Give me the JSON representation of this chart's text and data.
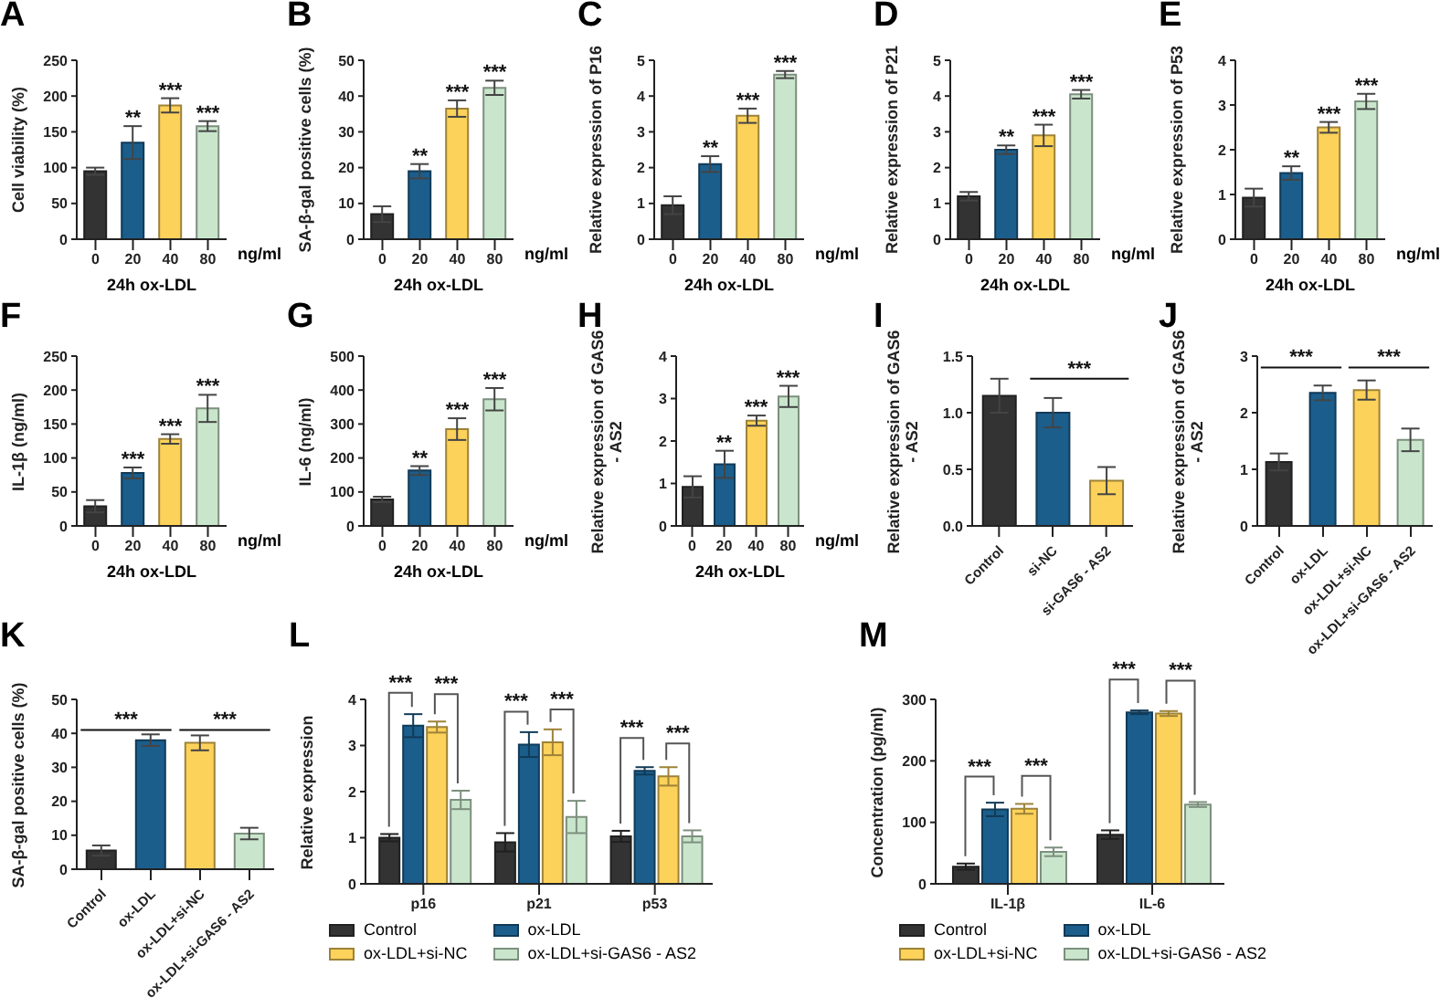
{
  "chart_data": [
    {
      "type": "bar",
      "title": "A",
      "xlabel": "24h ox-LDL",
      "ylabel": "Cell viability (%)",
      "categories": [
        "0",
        "20",
        "40",
        "80"
      ],
      "values": [
        95,
        135,
        187,
        158
      ],
      "errors": [
        5,
        23,
        10,
        7
      ],
      "colors": [
        "#333333",
        "#1b5e8c",
        "#fdd25a",
        "#c9e6cc"
      ],
      "ylim": [
        0,
        250
      ],
      "yticks": [
        0,
        50,
        100,
        150,
        200,
        250
      ],
      "annotations": [
        {
          "text": "**",
          "x": "20",
          "y": 158
        },
        {
          "text": "***",
          "x": "40",
          "y": 197
        },
        {
          "text": "***",
          "x": "80",
          "y": 165
        },
        "ng/ml"
      ]
    },
    {
      "type": "bar",
      "title": "B",
      "xlabel": "24h ox-LDL",
      "ylabel": "SA-β-gal positive cells (%)",
      "categories": [
        "0",
        "20",
        "40",
        "80"
      ],
      "values": [
        7,
        19,
        36.5,
        42.3
      ],
      "errors": [
        2.2,
        2,
        2.3,
        2
      ],
      "colors": [
        "#333333",
        "#1b5e8c",
        "#fdd25a",
        "#c9e6cc"
      ],
      "ylim": [
        0,
        50
      ],
      "yticks": [
        0,
        10,
        20,
        30,
        40,
        50
      ],
      "annotations": [
        {
          "text": "**",
          "x": "20",
          "y": 21
        },
        {
          "text": "***",
          "x": "40",
          "y": 38.8
        },
        {
          "text": "***",
          "x": "80",
          "y": 44.3
        },
        "ng/ml"
      ]
    },
    {
      "type": "bar",
      "title": "C",
      "xlabel": "24h ox-LDL",
      "ylabel": "Relative expression of P16",
      "categories": [
        "0",
        "20",
        "40",
        "80"
      ],
      "values": [
        0.95,
        2.1,
        3.45,
        4.6
      ],
      "errors": [
        0.25,
        0.22,
        0.2,
        0.1
      ],
      "colors": [
        "#333333",
        "#1b5e8c",
        "#fdd25a",
        "#c9e6cc"
      ],
      "ylim": [
        0,
        5
      ],
      "yticks": [
        0,
        1,
        2,
        3,
        4,
        5
      ],
      "annotations": [
        {
          "text": "**",
          "x": "20",
          "y": 2.32
        },
        {
          "text": "***",
          "x": "40",
          "y": 3.65
        },
        {
          "text": "***",
          "x": "80",
          "y": 4.7
        },
        "ng/ml"
      ]
    },
    {
      "type": "bar",
      "title": "D",
      "xlabel": "24h ox-LDL",
      "ylabel": "Relative expression of P21",
      "categories": [
        "0",
        "20",
        "40",
        "80"
      ],
      "values": [
        1.2,
        2.5,
        2.9,
        4.05
      ],
      "errors": [
        0.12,
        0.12,
        0.3,
        0.12
      ],
      "colors": [
        "#333333",
        "#1b5e8c",
        "#fdd25a",
        "#c9e6cc"
      ],
      "ylim": [
        0,
        5
      ],
      "yticks": [
        0,
        1,
        2,
        3,
        4,
        5
      ],
      "annotations": [
        {
          "text": "**",
          "x": "20",
          "y": 2.62
        },
        {
          "text": "***",
          "x": "40",
          "y": 3.2
        },
        {
          "text": "***",
          "x": "80",
          "y": 4.17
        },
        "ng/ml"
      ]
    },
    {
      "type": "bar",
      "title": "E",
      "xlabel": "24h ox-LDL",
      "ylabel": "Relative expression of P53",
      "categories": [
        "0",
        "20",
        "40",
        "80"
      ],
      "values": [
        0.93,
        1.48,
        2.5,
        3.08
      ],
      "errors": [
        0.2,
        0.15,
        0.12,
        0.17
      ],
      "colors": [
        "#333333",
        "#1b5e8c",
        "#fdd25a",
        "#c9e6cc"
      ],
      "ylim": [
        0,
        4
      ],
      "yticks": [
        0,
        1,
        2,
        3,
        4
      ],
      "annotations": [
        {
          "text": "**",
          "x": "20",
          "y": 1.63
        },
        {
          "text": "***",
          "x": "40",
          "y": 2.62
        },
        {
          "text": "***",
          "x": "80",
          "y": 3.25
        },
        "ng/ml"
      ]
    },
    {
      "type": "bar",
      "title": "F",
      "xlabel": "24h ox-LDL",
      "ylabel": "IL-1β (ng/ml)",
      "categories": [
        "0",
        "20",
        "40",
        "80"
      ],
      "values": [
        29,
        78,
        128,
        173
      ],
      "errors": [
        9,
        8,
        7,
        20
      ],
      "colors": [
        "#333333",
        "#1b5e8c",
        "#fdd25a",
        "#c9e6cc"
      ],
      "ylim": [
        0,
        250
      ],
      "yticks": [
        0,
        50,
        100,
        150,
        200,
        250
      ],
      "annotations": [
        {
          "text": "***",
          "x": "20",
          "y": 86
        },
        {
          "text": "***",
          "x": "40",
          "y": 135
        },
        {
          "text": "***",
          "x": "80",
          "y": 193
        },
        "ng/ml"
      ]
    },
    {
      "type": "bar",
      "title": "G",
      "xlabel": "24h ox-LDL",
      "ylabel": "IL-6 (ng/ml)",
      "categories": [
        "0",
        "20",
        "40",
        "80"
      ],
      "values": [
        78,
        163,
        285,
        373
      ],
      "errors": [
        8,
        13,
        32,
        33
      ],
      "colors": [
        "#333333",
        "#1b5e8c",
        "#fdd25a",
        "#c9e6cc"
      ],
      "ylim": [
        0,
        500
      ],
      "yticks": [
        0,
        100,
        200,
        300,
        400,
        500
      ],
      "annotations": [
        {
          "text": "**",
          "x": "20",
          "y": 176
        },
        {
          "text": "***",
          "x": "40",
          "y": 317
        },
        {
          "text": "***",
          "x": "80",
          "y": 406
        },
        "ng/ml"
      ]
    },
    {
      "type": "bar",
      "title": "H",
      "xlabel": "24h ox-LDL",
      "ylabel": "Relative expression of GAS6 - AS2",
      "categories": [
        "0",
        "20",
        "40",
        "80"
      ],
      "values": [
        0.92,
        1.45,
        2.48,
        3.05
      ],
      "errors": [
        0.25,
        0.32,
        0.12,
        0.25
      ],
      "colors": [
        "#333333",
        "#1b5e8c",
        "#fdd25a",
        "#c9e6cc"
      ],
      "ylim": [
        0,
        4
      ],
      "yticks": [
        0,
        1,
        2,
        3,
        4
      ],
      "annotations": [
        {
          "text": "**",
          "x": "20",
          "y": 1.77
        },
        {
          "text": "***",
          "x": "40",
          "y": 2.6
        },
        {
          "text": "***",
          "x": "80",
          "y": 3.3
        },
        "ng/ml"
      ]
    },
    {
      "type": "bar",
      "title": "I",
      "ylabel": "Relative expression of GAS6 - AS2",
      "categories": [
        "Control",
        "si-NC",
        "si-GAS6 - AS2"
      ],
      "values": [
        1.15,
        1.0,
        0.4
      ],
      "errors": [
        0.15,
        0.13,
        0.12
      ],
      "colors": [
        "#333333",
        "#1b5e8c",
        "#fdd25a"
      ],
      "ylim": [
        0,
        1.5
      ],
      "yticks": [
        {
          "value": 0,
          "label": "0.0"
        },
        {
          "value": 0.5,
          "label": "0.5"
        },
        {
          "value": 1,
          "label": "1.0"
        },
        {
          "value": 1.5,
          "label": "1.5"
        }
      ],
      "annotations": [
        "***"
      ]
    },
    {
      "type": "bar",
      "title": "J",
      "ylabel": "Relative expression of GAS6 - AS2",
      "categories": [
        "Control",
        "ox-LDL",
        "ox-LDL+si-NC",
        "ox-LDL+si-GAS6 - AS2"
      ],
      "values": [
        1.13,
        2.35,
        2.4,
        1.52
      ],
      "errors": [
        0.15,
        0.13,
        0.17,
        0.2
      ],
      "colors": [
        "#333333",
        "#1b5e8c",
        "#fdd25a",
        "#c9e6cc"
      ],
      "ylim": [
        0,
        3
      ],
      "yticks": [
        0,
        1,
        2,
        3
      ],
      "annotations": [
        "***",
        "***"
      ]
    },
    {
      "type": "bar",
      "title": "K",
      "ylabel": "SA-β-gal positive cells (%)",
      "categories": [
        "Control",
        "ox-LDL",
        "ox-LDL+si-NC",
        "ox-LDL+si-GAS6 - AS2"
      ],
      "values": [
        5.5,
        38,
        37.2,
        10.5
      ],
      "errors": [
        1.5,
        1.7,
        2.2,
        1.7
      ],
      "colors": [
        "#333333",
        "#1b5e8c",
        "#fdd25a",
        "#c9e6cc"
      ],
      "ylim": [
        0,
        50
      ],
      "yticks": [
        0,
        10,
        20,
        30,
        40,
        50
      ],
      "annotations": [
        "***",
        "***"
      ]
    },
    {
      "type": "bar",
      "title": "L",
      "ylabel": "Relative expression",
      "categories": [
        "p16",
        "p21",
        "p53"
      ],
      "ylim": [
        0,
        4
      ],
      "yticks": [
        0,
        1,
        2,
        3,
        4
      ],
      "legend": "bottom",
      "series": [
        {
          "name": "Control",
          "color": "#333333",
          "values": [
            1.0,
            0.9,
            1.03
          ],
          "errors": [
            0.08,
            0.2,
            0.12
          ]
        },
        {
          "name": "ox-LDL",
          "color": "#1b5e8c",
          "values": [
            3.43,
            3.02,
            2.45
          ],
          "errors": [
            0.25,
            0.27,
            0.08
          ]
        },
        {
          "name": "ox-LDL+si-NC",
          "color": "#fdd25a",
          "values": [
            3.4,
            3.07,
            2.33
          ],
          "errors": [
            0.12,
            0.28,
            0.2
          ]
        },
        {
          "name": "ox-LDL+si-GAS6 - AS2",
          "color": "#c9e6cc",
          "values": [
            1.82,
            1.45,
            1.03
          ],
          "errors": [
            0.2,
            0.35,
            0.13
          ]
        }
      ],
      "annotations": [
        {
          "text": "***",
          "x": "p16",
          "y": 3.43
        },
        {
          "text": "***",
          "x": "p16",
          "y": 3.4
        },
        {
          "text": "***",
          "x": "p21",
          "y": 3.02
        },
        {
          "text": "***",
          "x": "p21",
          "y": 3.07
        },
        {
          "text": "***",
          "x": "p53",
          "y": 2.45
        },
        {
          "text": "***",
          "x": "p53",
          "y": 2.33
        }
      ]
    },
    {
      "type": "bar",
      "title": "M",
      "ylabel": "Concentration (pg/ml)",
      "categories": [
        "IL-1β",
        "IL-6"
      ],
      "ylim": [
        0,
        300
      ],
      "yticks": [
        0,
        100,
        200,
        300
      ],
      "legend": "bottom",
      "series": [
        {
          "name": "Control",
          "color": "#333333",
          "values": [
            28,
            80
          ],
          "errors": [
            5,
            7
          ]
        },
        {
          "name": "ox-LDL",
          "color": "#1b5e8c",
          "values": [
            121,
            279
          ],
          "errors": [
            11,
            3
          ]
        },
        {
          "name": "ox-LDL+si-NC",
          "color": "#fdd25a",
          "values": [
            122,
            277
          ],
          "errors": [
            8,
            4
          ]
        },
        {
          "name": "ox-LDL+si-GAS6 - AS2",
          "color": "#c9e6cc",
          "values": [
            52,
            129
          ],
          "errors": [
            7,
            4
          ]
        }
      ],
      "annotations": [
        {
          "text": "***",
          "x": "IL-1β",
          "y": 121
        },
        {
          "text": "***",
          "x": "IL-1β",
          "y": 122
        },
        {
          "text": "***",
          "x": "IL-6",
          "y": 279
        },
        {
          "text": "***",
          "x": "IL-6",
          "y": 277
        }
      ]
    }
  ]
}
